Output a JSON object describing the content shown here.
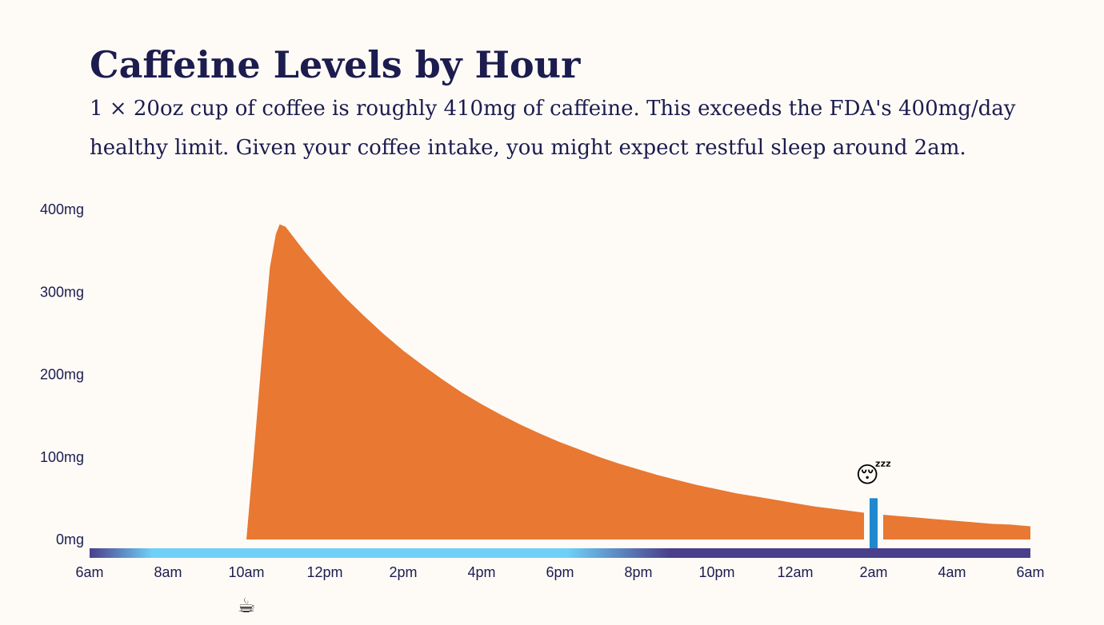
{
  "header": {
    "title": "Caffeine Levels by Hour",
    "subtitle_line1": "1 × 20oz cup of coffee is roughly 410mg of caffeine. This exceeds the FDA's 400mg/day",
    "subtitle_line2": "healthy limit. Given your coffee intake, you might expect restful sleep around 2am."
  },
  "chart_data": {
    "type": "area",
    "x_unit": "hours after 6am",
    "x_ticks": [
      {
        "x": 0,
        "label": "6am"
      },
      {
        "x": 2,
        "label": "8am"
      },
      {
        "x": 4,
        "label": "10am"
      },
      {
        "x": 6,
        "label": "12pm"
      },
      {
        "x": 8,
        "label": "2pm"
      },
      {
        "x": 10,
        "label": "4pm"
      },
      {
        "x": 12,
        "label": "6pm"
      },
      {
        "x": 14,
        "label": "8pm"
      },
      {
        "x": 16,
        "label": "10pm"
      },
      {
        "x": 18,
        "label": "12am"
      },
      {
        "x": 20,
        "label": "2am"
      },
      {
        "x": 22,
        "label": "4am"
      },
      {
        "x": 24,
        "label": "6am"
      }
    ],
    "y_ticks": [
      {
        "y": 0,
        "label": "0mg"
      },
      {
        "y": 100,
        "label": "100mg"
      },
      {
        "y": 200,
        "label": "200mg"
      },
      {
        "y": 300,
        "label": "300mg"
      },
      {
        "y": 400,
        "label": "400mg"
      }
    ],
    "xlim": [
      0,
      24
    ],
    "ylim": [
      0,
      400
    ],
    "grid": false,
    "series": [
      {
        "color": "#e87832",
        "points": [
          [
            4.0,
            0
          ],
          [
            4.2,
            110
          ],
          [
            4.4,
            225
          ],
          [
            4.6,
            330
          ],
          [
            4.75,
            370
          ],
          [
            4.85,
            382
          ],
          [
            5.0,
            379
          ],
          [
            5.5,
            348
          ],
          [
            6.0,
            320
          ],
          [
            6.5,
            294
          ],
          [
            7.0,
            271
          ],
          [
            7.5,
            249
          ],
          [
            8.0,
            229
          ],
          [
            8.5,
            211
          ],
          [
            9.0,
            194
          ],
          [
            9.5,
            178
          ],
          [
            10.0,
            164
          ],
          [
            10.5,
            151
          ],
          [
            11.0,
            139
          ],
          [
            11.5,
            128
          ],
          [
            12.0,
            118
          ],
          [
            12.5,
            109
          ],
          [
            13.0,
            100
          ],
          [
            13.5,
            92
          ],
          [
            14.0,
            85
          ],
          [
            14.5,
            78
          ],
          [
            15.0,
            72
          ],
          [
            15.5,
            66
          ],
          [
            16.0,
            61
          ],
          [
            16.5,
            56
          ],
          [
            17.0,
            52
          ],
          [
            17.5,
            48
          ],
          [
            18.0,
            44
          ],
          [
            18.5,
            40
          ],
          [
            19.0,
            37
          ],
          [
            19.5,
            34
          ],
          [
            20.0,
            31
          ],
          [
            20.5,
            29
          ],
          [
            21.0,
            27
          ],
          [
            21.5,
            25
          ],
          [
            22.0,
            23
          ],
          [
            22.5,
            21
          ],
          [
            23.0,
            19
          ],
          [
            23.5,
            18
          ],
          [
            24.0,
            16
          ]
        ]
      }
    ],
    "coffee_marker": {
      "x": 4,
      "icon": "coffee-cup-icon",
      "glyph": "☕"
    },
    "sleep_marker": {
      "x": 20,
      "value": 50,
      "icon": "sleeping-face-icon",
      "glyph": "😴"
    },
    "daylight_bar": {
      "night_color": "#4a3f8a",
      "day_color": "#6fd0f7",
      "stops": [
        {
          "x": 0,
          "color": "#4a3f8a"
        },
        {
          "x": 1.6,
          "color": "#6fd0f7"
        },
        {
          "x": 12.2,
          "color": "#6fd0f7"
        },
        {
          "x": 14.8,
          "color": "#4a3f8a"
        },
        {
          "x": 24,
          "color": "#4a3f8a"
        }
      ]
    },
    "colors": {
      "area": "#e87832",
      "marker": "#1f88cf",
      "text": "#1c1c4e"
    }
  }
}
